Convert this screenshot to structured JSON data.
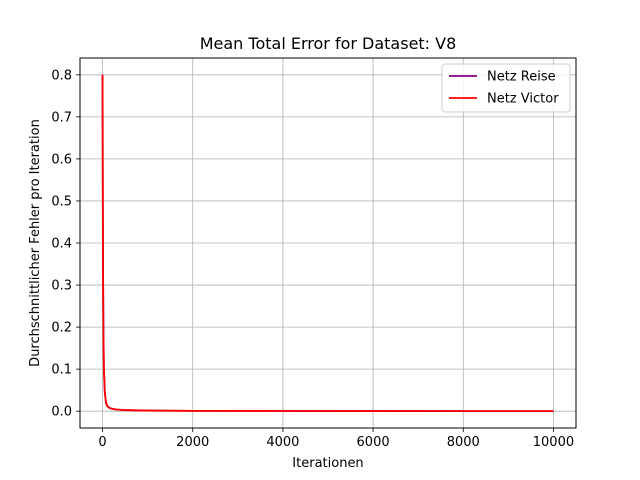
{
  "chart_data": {
    "type": "line",
    "title": "Mean Total Error for Dataset: V8",
    "xlabel": "Iterationen",
    "ylabel": "Durchschnittlicher Fehler pro Iteration",
    "xlim": [
      -500,
      10500
    ],
    "ylim": [
      -0.04,
      0.84
    ],
    "xticks": [
      0,
      2000,
      4000,
      6000,
      8000,
      10000
    ],
    "yticks": [
      0.0,
      0.1,
      0.2,
      0.3,
      0.4,
      0.5,
      0.6,
      0.7,
      0.8
    ],
    "xtick_labels": [
      "0",
      "2000",
      "4000",
      "6000",
      "8000",
      "10000"
    ],
    "ytick_labels": [
      "0.0",
      "0.1",
      "0.2",
      "0.3",
      "0.4",
      "0.5",
      "0.6",
      "0.7",
      "0.8"
    ],
    "grid": true,
    "legend_position": "top-right",
    "series": [
      {
        "name": "Netz Reise",
        "color": "#800080",
        "x": [
          0,
          5,
          10,
          20,
          30,
          50,
          75,
          100,
          150,
          200,
          300,
          500,
          1000,
          2000,
          4000,
          6000,
          8000,
          10000
        ],
        "y": [
          0.8,
          0.55,
          0.35,
          0.18,
          0.1,
          0.045,
          0.022,
          0.013,
          0.008,
          0.006,
          0.004,
          0.0025,
          0.0015,
          0.0008,
          0.0004,
          0.0003,
          0.0002,
          0.0001
        ]
      },
      {
        "name": "Netz Victor",
        "color": "#ff0000",
        "x": [
          0,
          5,
          10,
          20,
          30,
          50,
          75,
          100,
          150,
          200,
          300,
          500,
          1000,
          2000,
          4000,
          6000,
          8000,
          10000
        ],
        "y": [
          0.8,
          0.55,
          0.35,
          0.18,
          0.1,
          0.045,
          0.022,
          0.013,
          0.008,
          0.006,
          0.004,
          0.0025,
          0.0015,
          0.0008,
          0.0004,
          0.0003,
          0.0002,
          0.0001
        ]
      }
    ]
  }
}
